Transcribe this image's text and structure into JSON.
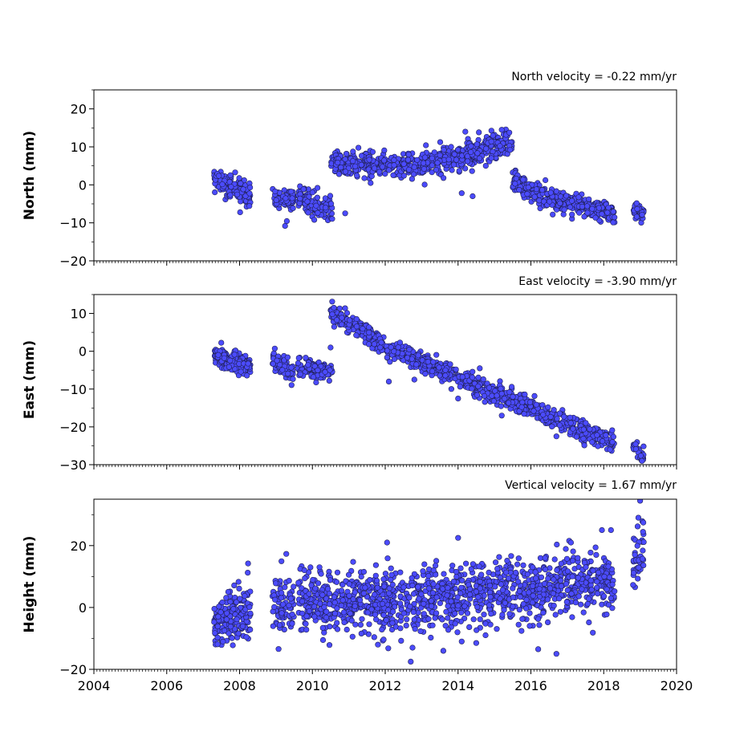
{
  "chart_data": [
    {
      "type": "scatter",
      "panel": "north",
      "title": "North velocity = -0.22 mm/yr",
      "ylabel": "North (mm)",
      "xlabel": "",
      "xlim": [
        2004,
        2020
      ],
      "ylim": [
        -20,
        25
      ],
      "yticks": [
        -20,
        -10,
        0,
        10,
        20
      ],
      "ytick_labels": [
        "−20",
        "−10",
        "0",
        "10",
        "20"
      ],
      "xticks": [
        2004,
        2006,
        2008,
        2010,
        2012,
        2014,
        2016,
        2018,
        2020
      ],
      "xtick_labels": [],
      "marker_color": "#4b4bff",
      "marker_edge": "#202050",
      "series": [
        {
          "segments": [
            {
              "x": [
                2007.3,
                2008.3
              ],
              "y": [
                2.0,
                -3.0
              ],
              "noise": 1.4,
              "n": 170
            },
            {
              "x": [
                2008.9,
                2009.5
              ],
              "y": [
                -3.0,
                -4.0
              ],
              "noise": 1.4,
              "n": 70
            },
            {
              "x": [
                2009.6,
                2010.55
              ],
              "y": [
                -3.0,
                -7.0
              ],
              "noise": 1.6,
              "n": 120
            },
            {
              "x": [
                2010.5,
                2012.5
              ],
              "y": [
                6.0,
                5.0
              ],
              "noise": 1.5,
              "n": 260
            },
            {
              "x": [
                2012.5,
                2014.2
              ],
              "y": [
                5.0,
                7.5
              ],
              "noise": 1.5,
              "n": 240
            },
            {
              "x": [
                2014.2,
                2015.5
              ],
              "y": [
                8.0,
                11.0
              ],
              "noise": 1.6,
              "n": 180
            },
            {
              "x": [
                2015.5,
                2016.3
              ],
              "y": [
                1.0,
                -3.0
              ],
              "noise": 1.3,
              "n": 130
            },
            {
              "x": [
                2016.3,
                2018.3
              ],
              "y": [
                -3.0,
                -7.5
              ],
              "noise": 1.3,
              "n": 280
            },
            {
              "x": [
                2018.8,
                2019.1
              ],
              "y": [
                -6.5,
                -7.5
              ],
              "noise": 1.0,
              "n": 40
            }
          ],
          "outliers": [
            {
              "x": 2009.25,
              "y": -10.8
            },
            {
              "x": 2010.9,
              "y": -7.5
            },
            {
              "x": 2011.6,
              "y": 0.5
            },
            {
              "x": 2013.6,
              "y": 1.8
            },
            {
              "x": 2014.1,
              "y": -2.2
            },
            {
              "x": 2014.4,
              "y": -3.0
            },
            {
              "x": 2014.2,
              "y": 14.0
            },
            {
              "x": 2015.2,
              "y": 14.5
            },
            {
              "x": 2016.6,
              "y": -7.8
            }
          ]
        }
      ]
    },
    {
      "type": "scatter",
      "panel": "east",
      "title": "East velocity = -3.90 mm/yr",
      "ylabel": "East (mm)",
      "xlabel": "",
      "xlim": [
        2004,
        2020
      ],
      "ylim": [
        -30,
        15
      ],
      "yticks": [
        -30,
        -20,
        -10,
        0,
        10
      ],
      "ytick_labels": [
        "−30",
        "−20",
        "−10",
        "0",
        "10"
      ],
      "xticks": [
        2004,
        2006,
        2008,
        2010,
        2012,
        2014,
        2016,
        2018,
        2020
      ],
      "xtick_labels": [],
      "marker_color": "#4b4bff",
      "marker_edge": "#202050",
      "series": [
        {
          "segments": [
            {
              "x": [
                2007.3,
                2008.3
              ],
              "y": [
                -1.0,
                -4.0
              ],
              "noise": 1.2,
              "n": 170
            },
            {
              "x": [
                2008.9,
                2009.5
              ],
              "y": [
                -2.0,
                -5.5
              ],
              "noise": 1.2,
              "n": 70
            },
            {
              "x": [
                2009.6,
                2010.55
              ],
              "y": [
                -4.5,
                -5.5
              ],
              "noise": 1.2,
              "n": 120
            },
            {
              "x": [
                2010.5,
                2011.8
              ],
              "y": [
                10.5,
                3.0
              ],
              "noise": 1.2,
              "n": 170
            },
            {
              "x": [
                2011.8,
                2018.3
              ],
              "y": [
                2.0,
                -24.5
              ],
              "noise": 1.3,
              "n": 760
            },
            {
              "x": [
                2018.8,
                2019.1
              ],
              "y": [
                -25.0,
                -28.0
              ],
              "noise": 1.0,
              "n": 40
            }
          ],
          "outliers": [
            {
              "x": 2010.5,
              "y": 1.0
            },
            {
              "x": 2012.1,
              "y": -8.0
            },
            {
              "x": 2012.8,
              "y": -7.5
            },
            {
              "x": 2014.0,
              "y": -12.5
            },
            {
              "x": 2015.2,
              "y": -17.0
            },
            {
              "x": 2016.7,
              "y": -22.5
            },
            {
              "x": 2019.05,
              "y": -29.0
            }
          ]
        }
      ]
    },
    {
      "type": "scatter",
      "panel": "height",
      "title": "Vertical velocity = 1.67 mm/yr",
      "ylabel": "Height (mm)",
      "xlabel": "",
      "xlim": [
        2004,
        2020
      ],
      "ylim": [
        -20,
        35
      ],
      "yticks": [
        -20,
        0,
        20
      ],
      "ytick_labels": [
        "−20",
        "0",
        "20"
      ],
      "xticks": [
        2004,
        2006,
        2008,
        2010,
        2012,
        2014,
        2016,
        2018,
        2020
      ],
      "xtick_labels": [
        "2004",
        "2006",
        "2008",
        "2010",
        "2012",
        "2014",
        "2016",
        "2018",
        "2020"
      ],
      "marker_color": "#4b4bff",
      "marker_edge": "#202050",
      "series": [
        {
          "segments": [
            {
              "x": [
                2007.3,
                2008.3
              ],
              "y": [
                -6.0,
                0.0
              ],
              "noise": 4.5,
              "n": 190
            },
            {
              "x": [
                2008.9,
                2009.5
              ],
              "y": [
                1.0,
                1.0
              ],
              "noise": 4.5,
              "n": 80
            },
            {
              "x": [
                2009.6,
                2012.5
              ],
              "y": [
                1.5,
                2.0
              ],
              "noise": 5.0,
              "n": 420
            },
            {
              "x": [
                2012.5,
                2018.3
              ],
              "y": [
                2.0,
                8.0
              ],
              "noise": 5.0,
              "n": 800
            },
            {
              "x": [
                2018.8,
                2019.1
              ],
              "y": [
                12.0,
                18.0
              ],
              "noise": 5.0,
              "n": 40
            }
          ],
          "outliers": [
            {
              "x": 2012.7,
              "y": -17.5
            },
            {
              "x": 2012.75,
              "y": -13.0
            },
            {
              "x": 2011.8,
              "y": -12.0
            },
            {
              "x": 2014.1,
              "y": -11.0
            },
            {
              "x": 2014.5,
              "y": -11.5
            },
            {
              "x": 2016.2,
              "y": -13.5
            },
            {
              "x": 2016.7,
              "y": -15.0
            },
            {
              "x": 2019.0,
              "y": 34.5
            },
            {
              "x": 2018.95,
              "y": 29.0
            },
            {
              "x": 2014.0,
              "y": 22.5
            },
            {
              "x": 2012.05,
              "y": 21.0
            },
            {
              "x": 2017.1,
              "y": 21.0
            },
            {
              "x": 2017.95,
              "y": 25.0
            },
            {
              "x": 2018.2,
              "y": 25.0
            }
          ]
        }
      ]
    }
  ]
}
